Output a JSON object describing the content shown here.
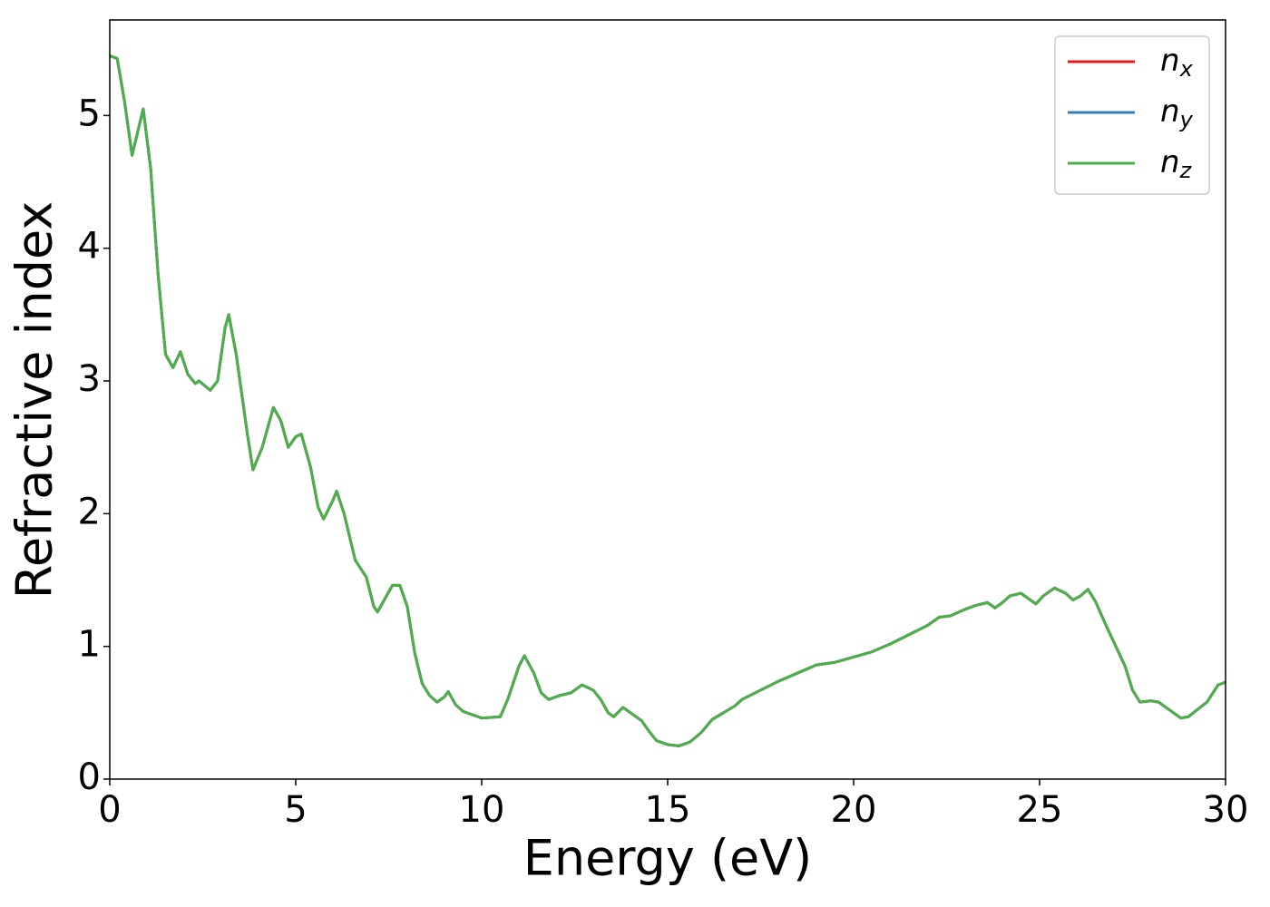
{
  "chart_data": {
    "type": "line",
    "xlabel": "Energy (eV)",
    "ylabel": "Refractive index",
    "x": [
      0,
      0.2,
      0.4,
      0.6,
      0.9,
      1.1,
      1.3,
      1.5,
      1.7,
      1.9,
      2.1,
      2.3,
      2.4,
      2.7,
      2.9,
      3.1,
      3.2,
      3.4,
      3.7,
      3.85,
      4.1,
      4.4,
      4.6,
      4.8,
      5.0,
      5.15,
      5.4,
      5.6,
      5.75,
      6.0,
      6.1,
      6.3,
      6.6,
      6.9,
      7.1,
      7.2,
      7.4,
      7.6,
      7.8,
      8.0,
      8.2,
      8.4,
      8.6,
      8.8,
      9.0,
      9.1,
      9.3,
      9.5,
      10.0,
      10.5,
      10.7,
      11.0,
      11.15,
      11.4,
      11.6,
      11.8,
      12.1,
      12.4,
      12.7,
      13.0,
      13.2,
      13.4,
      13.55,
      13.8,
      14.0,
      14.3,
      14.5,
      14.7,
      15.0,
      15.3,
      15.6,
      15.9,
      16.2,
      16.5,
      16.8,
      17.0,
      17.5,
      18.0,
      18.5,
      19.0,
      19.5,
      20.0,
      20.5,
      21.0,
      21.5,
      22.0,
      22.3,
      22.6,
      23.0,
      23.3,
      23.6,
      23.8,
      24.0,
      24.2,
      24.5,
      24.7,
      24.9,
      25.1,
      25.4,
      25.7,
      25.9,
      26.1,
      26.3,
      26.5,
      26.8,
      27.1,
      27.3,
      27.5,
      27.7,
      28.0,
      28.2,
      28.5,
      28.8,
      29.0,
      29.5,
      29.8,
      30.0
    ],
    "series": [
      {
        "name": "nx",
        "color": "#e41a1c",
        "values": [
          5.45,
          5.43,
          5.1,
          4.7,
          5.05,
          4.6,
          3.8,
          3.2,
          3.1,
          3.22,
          3.05,
          2.98,
          3.0,
          2.93,
          3.0,
          3.4,
          3.5,
          3.2,
          2.6,
          2.33,
          2.5,
          2.8,
          2.7,
          2.5,
          2.58,
          2.6,
          2.35,
          2.05,
          1.96,
          2.1,
          2.17,
          2.0,
          1.65,
          1.52,
          1.3,
          1.26,
          1.36,
          1.46,
          1.46,
          1.3,
          0.95,
          0.72,
          0.63,
          0.58,
          0.62,
          0.66,
          0.56,
          0.51,
          0.46,
          0.47,
          0.6,
          0.85,
          0.93,
          0.8,
          0.65,
          0.6,
          0.63,
          0.65,
          0.71,
          0.67,
          0.6,
          0.5,
          0.47,
          0.54,
          0.5,
          0.44,
          0.36,
          0.29,
          0.26,
          0.25,
          0.28,
          0.35,
          0.45,
          0.5,
          0.55,
          0.6,
          0.67,
          0.74,
          0.8,
          0.86,
          0.88,
          0.92,
          0.96,
          1.02,
          1.09,
          1.16,
          1.22,
          1.23,
          1.28,
          1.31,
          1.33,
          1.29,
          1.33,
          1.38,
          1.4,
          1.36,
          1.32,
          1.38,
          1.44,
          1.4,
          1.35,
          1.38,
          1.43,
          1.34,
          1.15,
          0.97,
          0.85,
          0.67,
          0.58,
          0.59,
          0.58,
          0.52,
          0.46,
          0.47,
          0.58,
          0.71,
          0.73
        ]
      },
      {
        "name": "ny",
        "color": "#377eb8",
        "values": [
          5.45,
          5.43,
          5.1,
          4.7,
          5.05,
          4.6,
          3.8,
          3.2,
          3.1,
          3.22,
          3.05,
          2.98,
          3.0,
          2.93,
          3.0,
          3.4,
          3.5,
          3.2,
          2.6,
          2.33,
          2.5,
          2.8,
          2.7,
          2.5,
          2.58,
          2.6,
          2.35,
          2.05,
          1.96,
          2.1,
          2.17,
          2.0,
          1.65,
          1.52,
          1.3,
          1.26,
          1.36,
          1.46,
          1.46,
          1.3,
          0.95,
          0.72,
          0.63,
          0.58,
          0.62,
          0.66,
          0.56,
          0.51,
          0.46,
          0.47,
          0.6,
          0.85,
          0.93,
          0.8,
          0.65,
          0.6,
          0.63,
          0.65,
          0.71,
          0.67,
          0.6,
          0.5,
          0.47,
          0.54,
          0.5,
          0.44,
          0.36,
          0.29,
          0.26,
          0.25,
          0.28,
          0.35,
          0.45,
          0.5,
          0.55,
          0.6,
          0.67,
          0.74,
          0.8,
          0.86,
          0.88,
          0.92,
          0.96,
          1.02,
          1.09,
          1.16,
          1.22,
          1.23,
          1.28,
          1.31,
          1.33,
          1.29,
          1.33,
          1.38,
          1.4,
          1.36,
          1.32,
          1.38,
          1.44,
          1.4,
          1.35,
          1.38,
          1.43,
          1.34,
          1.15,
          0.97,
          0.85,
          0.67,
          0.58,
          0.59,
          0.58,
          0.52,
          0.46,
          0.47,
          0.58,
          0.71,
          0.73
        ]
      },
      {
        "name": "nz",
        "color": "#4daf4a",
        "values": [
          5.45,
          5.43,
          5.1,
          4.7,
          5.05,
          4.6,
          3.8,
          3.2,
          3.1,
          3.22,
          3.05,
          2.98,
          3.0,
          2.93,
          3.0,
          3.4,
          3.5,
          3.2,
          2.6,
          2.33,
          2.5,
          2.8,
          2.7,
          2.5,
          2.58,
          2.6,
          2.35,
          2.05,
          1.96,
          2.1,
          2.17,
          2.0,
          1.65,
          1.52,
          1.3,
          1.26,
          1.36,
          1.46,
          1.46,
          1.3,
          0.95,
          0.72,
          0.63,
          0.58,
          0.62,
          0.66,
          0.56,
          0.51,
          0.46,
          0.47,
          0.6,
          0.85,
          0.93,
          0.8,
          0.65,
          0.6,
          0.63,
          0.65,
          0.71,
          0.67,
          0.6,
          0.5,
          0.47,
          0.54,
          0.5,
          0.44,
          0.36,
          0.29,
          0.26,
          0.25,
          0.28,
          0.35,
          0.45,
          0.5,
          0.55,
          0.6,
          0.67,
          0.74,
          0.8,
          0.86,
          0.88,
          0.92,
          0.96,
          1.02,
          1.09,
          1.16,
          1.22,
          1.23,
          1.28,
          1.31,
          1.33,
          1.29,
          1.33,
          1.38,
          1.4,
          1.36,
          1.32,
          1.38,
          1.44,
          1.4,
          1.35,
          1.38,
          1.43,
          1.34,
          1.15,
          0.97,
          0.85,
          0.67,
          0.58,
          0.59,
          0.58,
          0.52,
          0.46,
          0.47,
          0.58,
          0.71,
          0.73
        ]
      }
    ],
    "xlim": [
      0,
      30
    ],
    "xticks": [
      0,
      5,
      10,
      15,
      20,
      25,
      30
    ],
    "ylim": [
      0,
      5.72
    ],
    "yticks": [
      0,
      1,
      2,
      3,
      4,
      5
    ],
    "legend": "upper right",
    "grid": false
  }
}
